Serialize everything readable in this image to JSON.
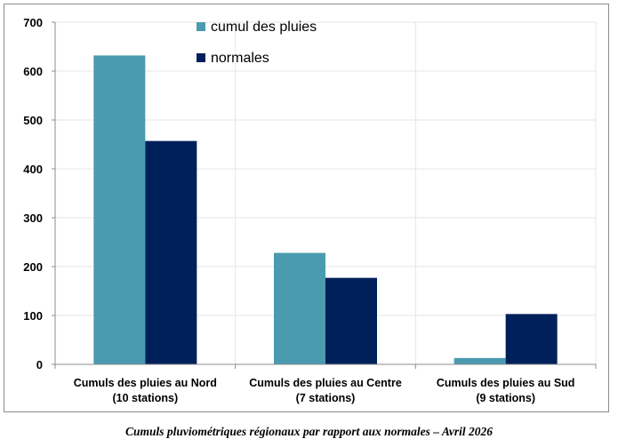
{
  "chart_data": {
    "type": "bar",
    "title": "",
    "xlabel": "",
    "ylabel": "",
    "ylim": [
      0,
      700
    ],
    "yticks": [
      0,
      100,
      200,
      300,
      400,
      500,
      600,
      700
    ],
    "grid": true,
    "legend_position": "top-center",
    "categories": [
      [
        "Cumuls des pluies au Nord",
        "(10 stations)"
      ],
      [
        "Cumuls des pluies au Centre",
        "(7 stations)"
      ],
      [
        "Cumuls des pluies au Sud",
        "(9 stations)"
      ]
    ],
    "series": [
      {
        "name": "cumul des pluies",
        "color": "#4a9bb0",
        "values": [
          632,
          228,
          13
        ]
      },
      {
        "name": "normales",
        "color": "#00205b",
        "values": [
          457,
          177,
          103
        ]
      }
    ]
  },
  "caption": "Cumuls pluviométriques régionaux par rapport aux normales – Avril 2026"
}
